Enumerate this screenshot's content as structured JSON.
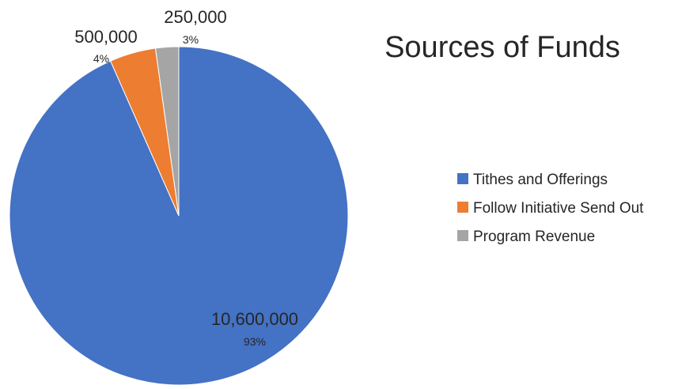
{
  "chart_data": {
    "type": "pie",
    "title": "Sources of Funds",
    "categories": [
      "Tithes and Offerings",
      "Follow Initiative Send Out",
      "Program Revenue"
    ],
    "values": [
      10600000,
      500000,
      250000
    ],
    "value_labels": [
      "10,600,000",
      "500,000",
      "250,000"
    ],
    "percent_labels": [
      "93%",
      "4%",
      "3%"
    ],
    "colors": [
      "#4472C4",
      "#ED7D31",
      "#A5A5A5"
    ],
    "legend_position": "right",
    "start_angle": "12 o'clock",
    "direction": "clockwise"
  }
}
